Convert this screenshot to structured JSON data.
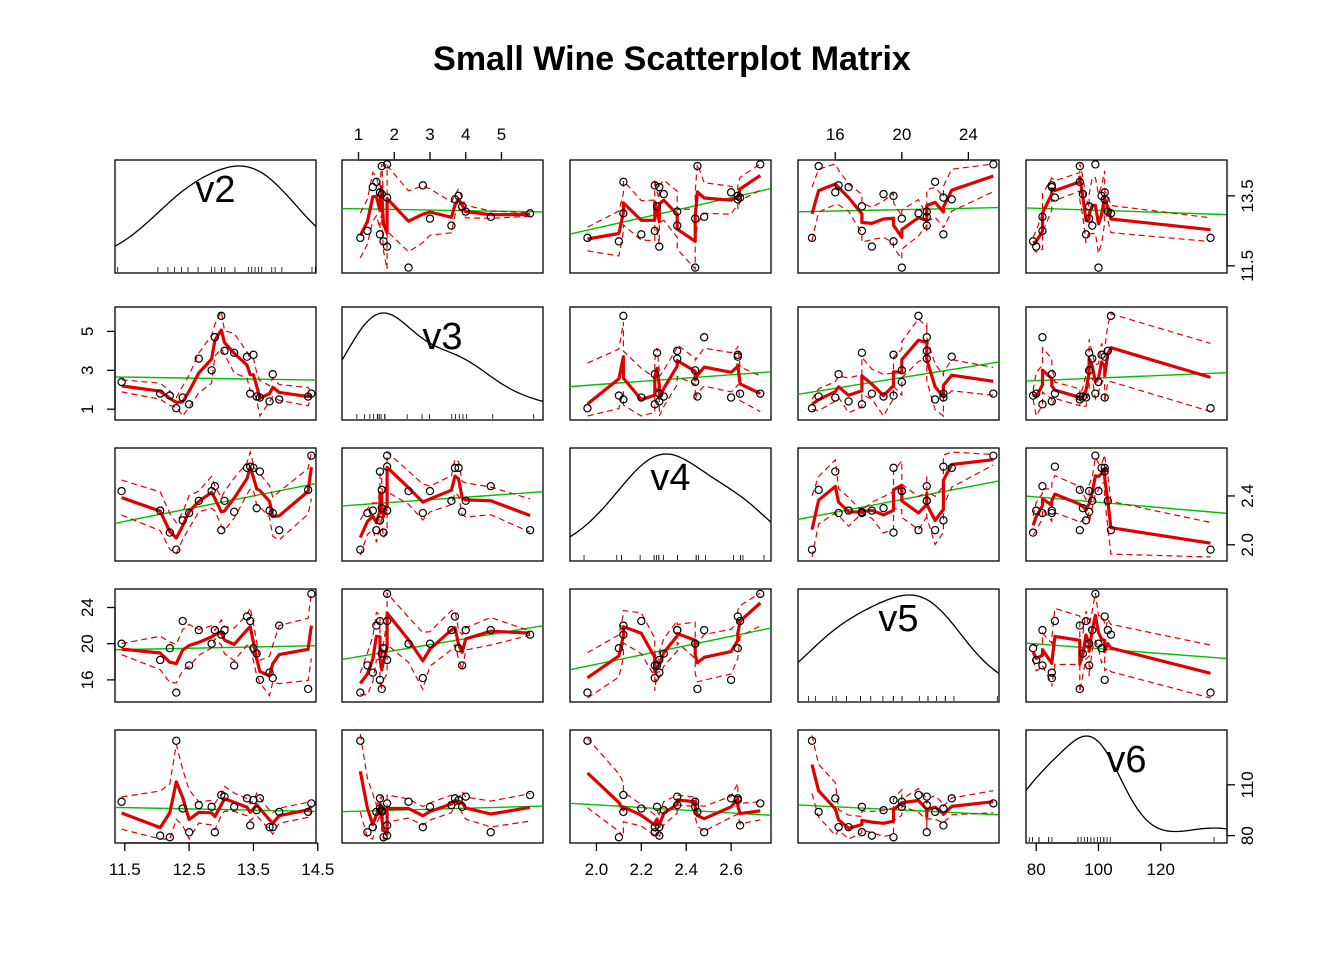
{
  "chart_data": {
    "type": "scatter",
    "title": "Small Wine  Scatterplot Matrix",
    "variables": [
      "v2",
      "v3",
      "v4",
      "v5",
      "v6"
    ],
    "ranges": {
      "v2": [
        11.41,
        14.41
      ],
      "v3": [
        0.65,
        6.05
      ],
      "v4": [
        1.9,
        2.76
      ],
      "v5": [
        14.0,
        25.6
      ],
      "v6": [
        78,
        140
      ]
    },
    "ticks": {
      "v2": [
        11.5,
        12.5,
        13.5,
        14.5
      ],
      "v3": [
        1,
        2,
        3,
        4,
        5
      ],
      "v4": [
        2.0,
        2.2,
        2.4,
        2.6
      ],
      "v5": [
        16,
        20,
        24
      ],
      "v6": [
        80,
        100,
        120
      ]
    },
    "axis_ticks": {
      "bottom": [
        [
          "v2",
          [
            "11.5",
            "12.5",
            "13.5",
            "14.5"
          ]
        ],
        [
          "v4",
          [
            "2.0",
            "2.2",
            "2.4",
            "2.6"
          ]
        ],
        [
          "v6",
          [
            "80",
            "100",
            "120"
          ]
        ]
      ],
      "top": [
        [
          "v3",
          [
            "1",
            "2",
            "3",
            "4",
            "5"
          ]
        ],
        [
          "v5",
          [
            "16",
            "20",
            "24"
          ]
        ]
      ],
      "left": [
        [
          "v3",
          [
            "1",
            "3",
            "5"
          ]
        ],
        [
          "v5",
          [
            "16",
            "20",
            "24"
          ]
        ]
      ],
      "right": [
        [
          "v2",
          [
            "11.5",
            "13.5"
          ]
        ],
        [
          "v4",
          [
            "2.0",
            "2.4"
          ]
        ],
        [
          "v6",
          [
            "80",
            "110"
          ]
        ]
      ]
    },
    "observations": [
      {
        "v2": 11.45,
        "v3": 2.4,
        "v4": 2.44,
        "v5": 20.0,
        "v6": 100
      },
      {
        "v2": 12.05,
        "v3": 1.8,
        "v4": 2.28,
        "v5": 18.2,
        "v6": 80
      },
      {
        "v2": 12.2,
        "v3": 1.7,
        "v4": 2.1,
        "v5": 19.5,
        "v6": 79
      },
      {
        "v2": 12.3,
        "v3": 1.05,
        "v4": 1.96,
        "v5": 14.6,
        "v6": 136
      },
      {
        "v2": 12.4,
        "v3": 1.6,
        "v4": 2.2,
        "v5": 22.5,
        "v6": 96
      },
      {
        "v2": 12.5,
        "v3": 1.25,
        "v4": 2.26,
        "v5": 17.6,
        "v6": 82
      },
      {
        "v2": 12.65,
        "v3": 3.6,
        "v4": 2.36,
        "v5": 21.5,
        "v6": 98
      },
      {
        "v2": 12.85,
        "v3": 3.0,
        "v4": 2.44,
        "v5": 20.0,
        "v6": 97
      },
      {
        "v2": 12.9,
        "v3": 4.7,
        "v4": 2.48,
        "v5": 21.5,
        "v6": 82
      },
      {
        "v2": 13.0,
        "v3": 5.8,
        "v4": 2.12,
        "v5": 21.0,
        "v6": 104
      },
      {
        "v2": 13.05,
        "v3": 4.0,
        "v4": 2.36,
        "v5": 21.5,
        "v6": 103
      },
      {
        "v2": 13.2,
        "v3": 3.9,
        "v4": 2.27,
        "v5": 17.6,
        "v6": 97
      },
      {
        "v2": 13.4,
        "v3": 3.7,
        "v4": 2.63,
        "v5": 23.0,
        "v6": 102
      },
      {
        "v2": 13.45,
        "v3": 1.8,
        "v4": 2.64,
        "v5": 22.5,
        "v6": 86
      },
      {
        "v2": 13.5,
        "v3": 3.8,
        "v4": 2.63,
        "v5": 19.5,
        "v6": 101
      },
      {
        "v2": 13.55,
        "v3": 1.65,
        "v4": 2.3,
        "v5": 18.9,
        "v6": 95
      },
      {
        "v2": 13.6,
        "v3": 1.6,
        "v4": 2.6,
        "v5": 16.0,
        "v6": 102
      },
      {
        "v2": 13.75,
        "v3": 1.4,
        "v4": 2.28,
        "v5": 16.8,
        "v6": 85
      },
      {
        "v2": 13.8,
        "v3": 2.8,
        "v4": 2.26,
        "v5": 16.2,
        "v6": 85
      },
      {
        "v2": 13.9,
        "v3": 1.5,
        "v4": 2.12,
        "v5": 22.0,
        "v6": 94
      },
      {
        "v2": 14.4,
        "v3": 1.8,
        "v4": 2.73,
        "v5": 25.5,
        "v6": 99
      },
      {
        "v2": 14.35,
        "v3": 1.65,
        "v4": 2.45,
        "v5": 15.0,
        "v6": 94
      }
    ]
  }
}
